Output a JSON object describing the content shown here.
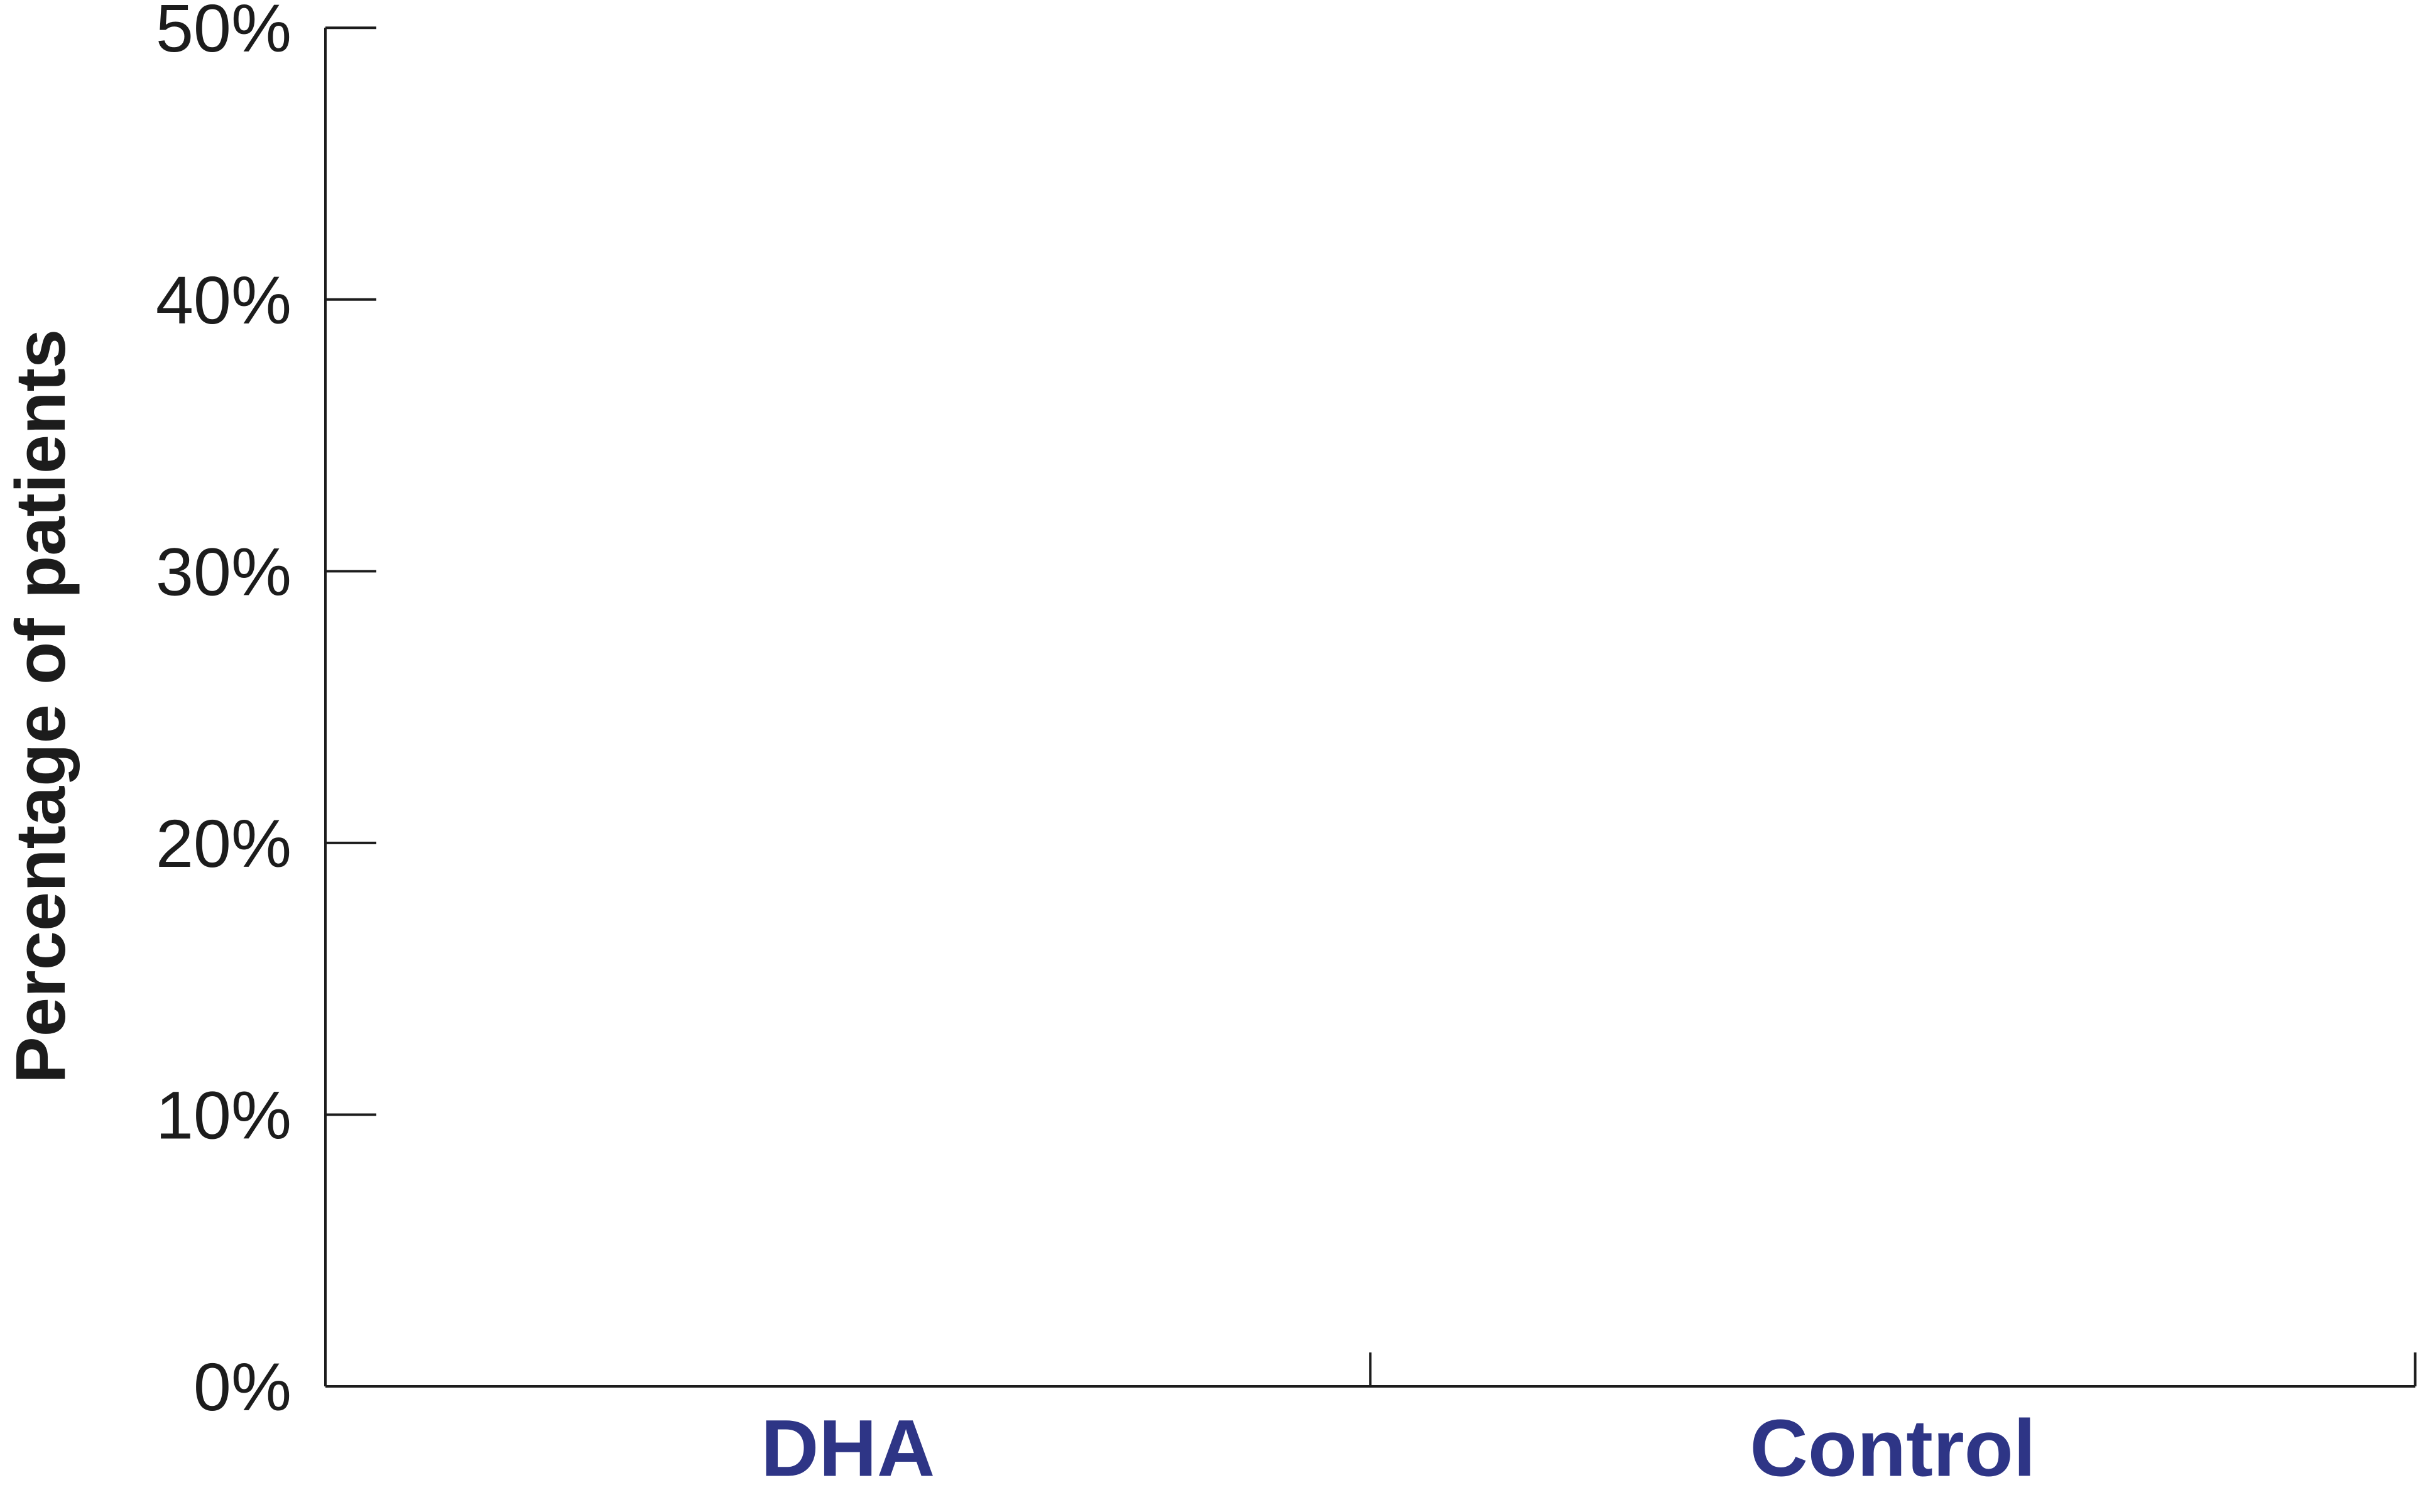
{
  "chart_data": {
    "type": "bar",
    "categories": [
      "DHA",
      "Control"
    ],
    "series": [
      {
        "values": [
          null,
          null
        ]
      }
    ],
    "xlabel": "",
    "ylabel": "Percentage of patients",
    "ylim": [
      0,
      50
    ],
    "y_ticks": [
      "0%",
      "10%",
      "20%",
      "30%",
      "40%",
      "50%"
    ],
    "y_tick_values": [
      0,
      10,
      20,
      30,
      40,
      50
    ],
    "grid": false,
    "legend": "none",
    "colors": {
      "axis": "#1c1c1c",
      "category_label": "#2e3586"
    }
  }
}
